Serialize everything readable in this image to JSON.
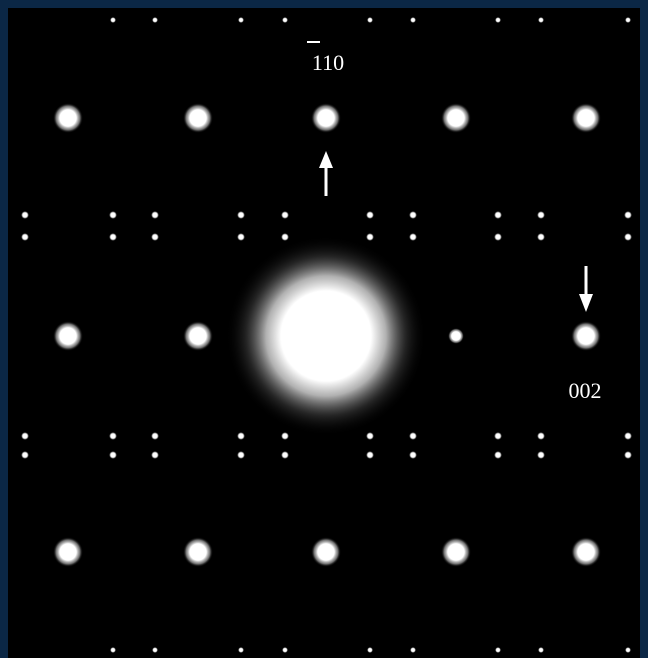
{
  "labels": {
    "top": "110",
    "right": "002"
  }
}
